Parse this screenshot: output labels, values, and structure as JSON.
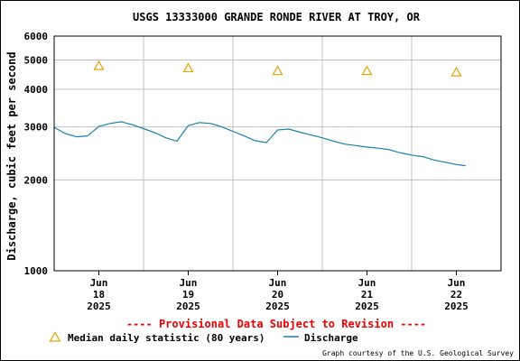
{
  "chart_data": {
    "type": "line",
    "title": "USGS 13333000 GRANDE RONDE RIVER AT TROY, OR",
    "ylabel": "Discharge, cubic feet per second",
    "xlabel": "",
    "yscale": "log",
    "ylim": [
      1000,
      6000
    ],
    "y_ticks": [
      {
        "value": 1000,
        "label": "1000"
      },
      {
        "value": 2000,
        "label": "2000"
      },
      {
        "value": 3000,
        "label": "3000"
      },
      {
        "value": 4000,
        "label": "4000"
      },
      {
        "value": 5000,
        "label": "5000"
      },
      {
        "value": 6000,
        "label": "6000"
      }
    ],
    "xlim": [
      "2025-06-17 12:00",
      "2025-06-22 12:00"
    ],
    "x_ticks": [
      {
        "time": "2025-06-18 00:00",
        "lines": [
          "Jun",
          "18",
          "2025"
        ]
      },
      {
        "time": "2025-06-19 00:00",
        "lines": [
          "Jun",
          "19",
          "2025"
        ]
      },
      {
        "time": "2025-06-20 00:00",
        "lines": [
          "Jun",
          "20",
          "2025"
        ]
      },
      {
        "time": "2025-06-21 00:00",
        "lines": [
          "Jun",
          "21",
          "2025"
        ]
      },
      {
        "time": "2025-06-22 00:00",
        "lines": [
          "Jun",
          "22",
          "2025"
        ]
      }
    ],
    "grid": true,
    "series": [
      {
        "name": "Median daily statistic (80 years)",
        "marker": "triangle",
        "color": "#e8a000",
        "points": [
          {
            "x": "2025-06-18 00:00",
            "y": 4780
          },
          {
            "x": "2025-06-19 00:00",
            "y": 4700
          },
          {
            "x": "2025-06-20 00:00",
            "y": 4600
          },
          {
            "x": "2025-06-21 00:00",
            "y": 4600
          },
          {
            "x": "2025-06-22 00:00",
            "y": 4550
          }
        ]
      },
      {
        "name": "Discharge",
        "marker": "line",
        "color": "#1a7fb0",
        "points": [
          {
            "x": "2025-06-17 12:00",
            "y": 2990
          },
          {
            "x": "2025-06-17 15:00",
            "y": 2850
          },
          {
            "x": "2025-06-17 18:00",
            "y": 2780
          },
          {
            "x": "2025-06-17 21:00",
            "y": 2800
          },
          {
            "x": "2025-06-18 00:00",
            "y": 3010
          },
          {
            "x": "2025-06-18 03:00",
            "y": 3080
          },
          {
            "x": "2025-06-18 06:00",
            "y": 3120
          },
          {
            "x": "2025-06-18 09:00",
            "y": 3050
          },
          {
            "x": "2025-06-18 12:00",
            "y": 2960
          },
          {
            "x": "2025-06-18 15:00",
            "y": 2870
          },
          {
            "x": "2025-06-18 18:00",
            "y": 2760
          },
          {
            "x": "2025-06-18 21:00",
            "y": 2690
          },
          {
            "x": "2025-06-19 00:00",
            "y": 3030
          },
          {
            "x": "2025-06-19 03:00",
            "y": 3100
          },
          {
            "x": "2025-06-19 06:00",
            "y": 3080
          },
          {
            "x": "2025-06-19 09:00",
            "y": 3000
          },
          {
            "x": "2025-06-19 12:00",
            "y": 2900
          },
          {
            "x": "2025-06-19 15:00",
            "y": 2800
          },
          {
            "x": "2025-06-19 18:00",
            "y": 2700
          },
          {
            "x": "2025-06-19 21:00",
            "y": 2660
          },
          {
            "x": "2025-06-20 00:00",
            "y": 2930
          },
          {
            "x": "2025-06-20 03:00",
            "y": 2950
          },
          {
            "x": "2025-06-20 06:00",
            "y": 2880
          },
          {
            "x": "2025-06-20 09:00",
            "y": 2820
          },
          {
            "x": "2025-06-20 12:00",
            "y": 2760
          },
          {
            "x": "2025-06-20 15:00",
            "y": 2690
          },
          {
            "x": "2025-06-20 18:00",
            "y": 2630
          },
          {
            "x": "2025-06-20 21:00",
            "y": 2600
          },
          {
            "x": "2025-06-21 00:00",
            "y": 2570
          },
          {
            "x": "2025-06-21 03:00",
            "y": 2550
          },
          {
            "x": "2025-06-21 06:00",
            "y": 2520
          },
          {
            "x": "2025-06-21 09:00",
            "y": 2460
          },
          {
            "x": "2025-06-21 12:00",
            "y": 2420
          },
          {
            "x": "2025-06-21 15:00",
            "y": 2390
          },
          {
            "x": "2025-06-21 18:00",
            "y": 2330
          },
          {
            "x": "2025-06-21 21:00",
            "y": 2290
          },
          {
            "x": "2025-06-22 00:00",
            "y": 2250
          },
          {
            "x": "2025-06-22 02:30",
            "y": 2230
          }
        ]
      }
    ]
  },
  "notice": "---- Provisional Data Subject to Revision ----",
  "legend": {
    "median_label": "Median daily statistic (80 years)",
    "discharge_label": "Discharge"
  },
  "credit": "Graph courtesy of the U.S. Geological Survey",
  "colors": {
    "notice": "#ee0000",
    "median": "#e8a000",
    "discharge": "#1a7fb0",
    "grid": "#c0c0c0"
  }
}
